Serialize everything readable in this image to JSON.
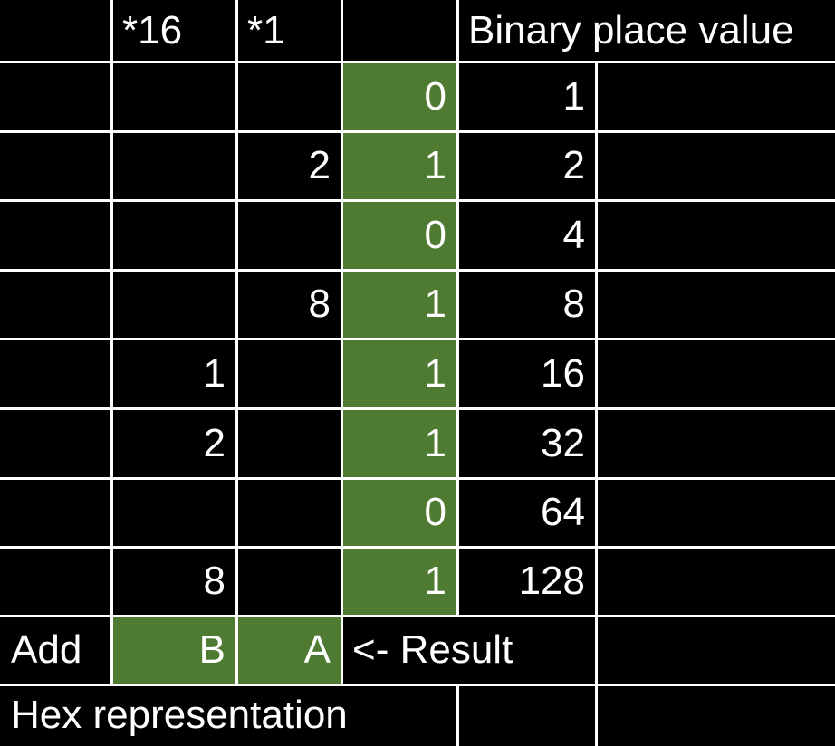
{
  "colors": {
    "background": "#000000",
    "grid_lines": "#ffffff",
    "highlight": "#4f7a32",
    "text": "#ffffff"
  },
  "header": {
    "col_16": "*16",
    "col_1": "*1",
    "binary_place_value": "Binary place value"
  },
  "rows": [
    {
      "sixteens": "",
      "ones": "",
      "bit": "0",
      "place": "1"
    },
    {
      "sixteens": "",
      "ones": "2",
      "bit": "1",
      "place": "2"
    },
    {
      "sixteens": "",
      "ones": "",
      "bit": "0",
      "place": "4"
    },
    {
      "sixteens": "",
      "ones": "8",
      "bit": "1",
      "place": "8"
    },
    {
      "sixteens": "1",
      "ones": "",
      "bit": "1",
      "place": "16"
    },
    {
      "sixteens": "2",
      "ones": "",
      "bit": "1",
      "place": "32"
    },
    {
      "sixteens": "",
      "ones": "",
      "bit": "0",
      "place": "64"
    },
    {
      "sixteens": "8",
      "ones": "",
      "bit": "1",
      "place": "128"
    }
  ],
  "sum_row": {
    "label": "Add",
    "hex_high": "B",
    "hex_low": "A",
    "result_note": "<- Result"
  },
  "footer": {
    "label": "Hex representation"
  }
}
